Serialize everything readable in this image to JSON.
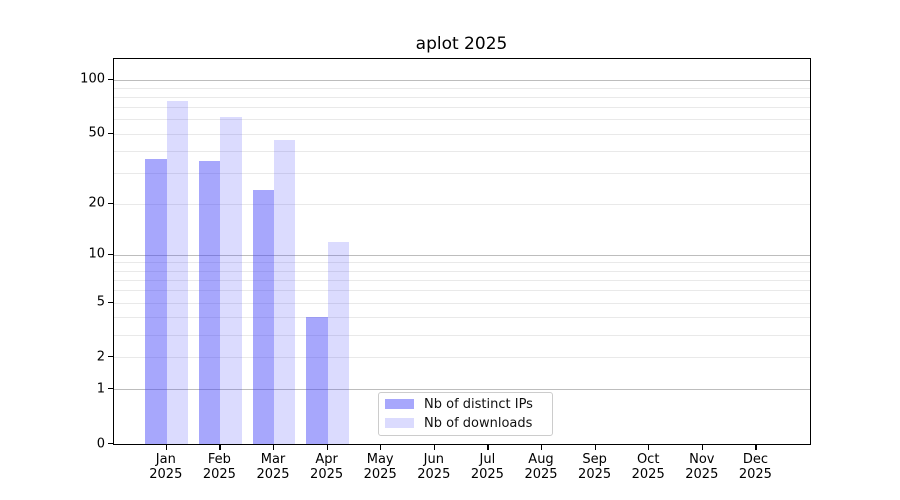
{
  "title": "aplot 2025",
  "chart_data": {
    "type": "bar",
    "title": "aplot 2025",
    "categories": [
      "Jan",
      "Feb",
      "Mar",
      "Apr",
      "May",
      "Jun",
      "Jul",
      "Aug",
      "Sep",
      "Oct",
      "Nov",
      "Dec"
    ],
    "category_year": "2025",
    "series": [
      {
        "key": "distinct-ips",
        "name": "Nb of distinct IPs",
        "color": "rgba(60,60,248,0.45)",
        "color_hex": "#a9a9fb",
        "values": [
          36,
          35,
          24,
          4,
          0,
          0,
          0,
          0,
          0,
          0,
          0,
          0
        ]
      },
      {
        "key": "downloads",
        "name": "Nb of downloads",
        "color": "rgba(60,60,248,0.185)",
        "color_hex": "#dbdbfc",
        "values": [
          76,
          62,
          46,
          12,
          0,
          0,
          0,
          0,
          0,
          0,
          0,
          0
        ]
      }
    ],
    "yscale": "log10(1+y)",
    "ylim": [
      0,
      130
    ],
    "ytick_labels": [
      "0",
      "1",
      "2",
      "5",
      "10",
      "20",
      "50",
      "100"
    ],
    "ytick_values": [
      0,
      1,
      2,
      5,
      10,
      20,
      50,
      100
    ],
    "ygrid_major": [
      1,
      10,
      100
    ],
    "ygrid_minor": [
      2,
      3,
      4,
      5,
      6,
      7,
      8,
      9,
      20,
      30,
      40,
      50,
      60,
      70,
      80,
      90
    ],
    "grid": "horizontal",
    "legend_position": "bottom-center",
    "colors": {
      "grid_major": "#bdbdbd",
      "grid_minor": "#e9e9e9",
      "spine": "#000000"
    }
  },
  "legend": {
    "items": [
      "Nb of distinct IPs",
      "Nb of downloads"
    ]
  }
}
